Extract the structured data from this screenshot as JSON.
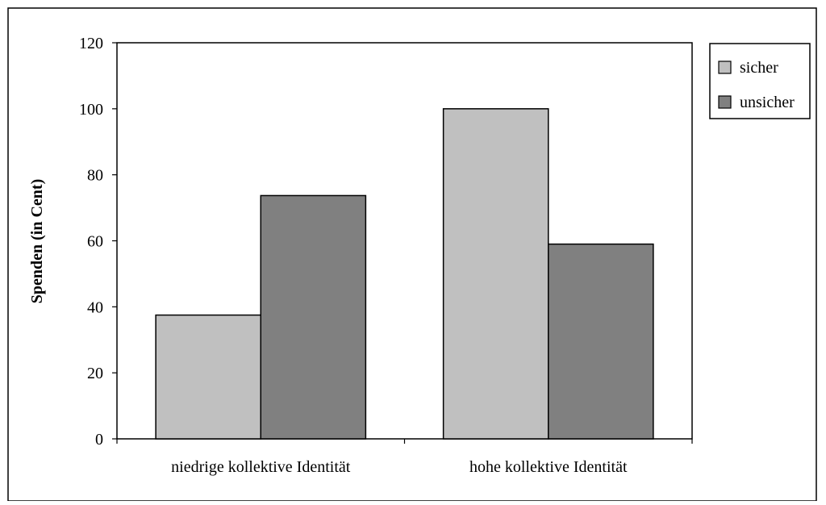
{
  "chart_data": {
    "type": "bar",
    "title": "",
    "xlabel": "",
    "ylabel": "Spenden (in Cent)",
    "ylim": [
      0,
      120
    ],
    "yticks": [
      0,
      20,
      40,
      60,
      80,
      100,
      120
    ],
    "categories": [
      "niedrige kollektive Identität",
      "hohe kollektive Identität"
    ],
    "series": [
      {
        "name": "sicher",
        "color": "#c0c0c0",
        "values": [
          37.5,
          100
        ]
      },
      {
        "name": "unsicher",
        "color": "#808080",
        "values": [
          73.7,
          59
        ]
      }
    ],
    "grid": false,
    "legend": {
      "position": "right"
    }
  }
}
